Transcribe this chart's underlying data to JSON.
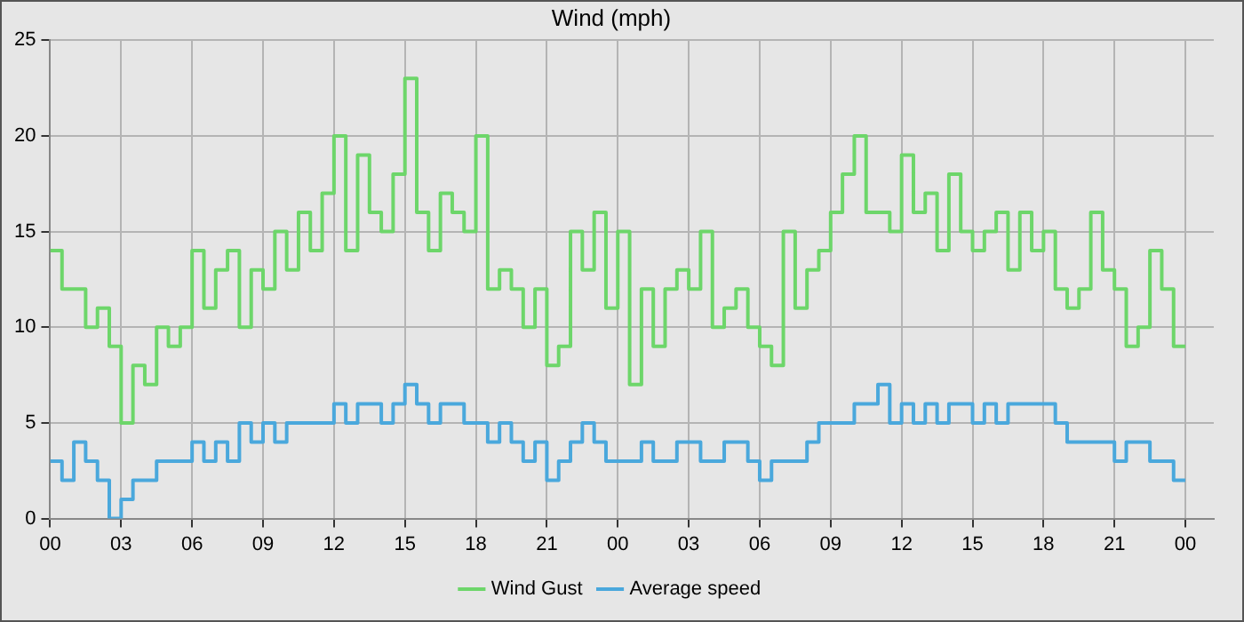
{
  "chart_data": {
    "type": "step",
    "title": "Wind (mph)",
    "x": [
      0,
      0.5,
      1,
      1.5,
      2,
      2.5,
      3,
      3.5,
      4,
      4.5,
      5,
      5.5,
      6,
      6.5,
      7,
      7.5,
      8,
      8.5,
      9,
      9.5,
      10,
      10.5,
      11,
      11.5,
      12,
      12.5,
      13,
      13.5,
      14,
      14.5,
      15,
      15.5,
      16,
      16.5,
      17,
      17.5,
      18,
      18.5,
      19,
      19.5,
      20,
      20.5,
      21,
      21.5,
      22,
      22.5,
      23,
      23.5,
      24,
      24.5,
      25,
      25.5,
      26,
      26.5,
      27,
      27.5,
      28,
      28.5,
      29,
      29.5,
      30,
      30.5,
      31,
      31.5,
      32,
      32.5,
      33,
      33.5,
      34,
      34.5,
      35,
      35.5,
      36,
      36.5,
      37,
      37.5,
      38,
      38.5,
      39,
      39.5,
      40,
      40.5,
      41,
      41.5,
      42,
      42.5,
      43,
      43.5,
      44,
      44.5,
      45,
      45.5,
      46,
      46.5,
      47,
      47.5,
      48
    ],
    "series": [
      {
        "name": "Wind Gust",
        "color": "#6dd66a",
        "values": [
          14,
          12,
          12,
          10,
          11,
          9,
          5,
          8,
          7,
          10,
          9,
          10,
          14,
          11,
          13,
          14,
          10,
          13,
          12,
          15,
          13,
          16,
          14,
          17,
          20,
          14,
          19,
          16,
          15,
          18,
          23,
          16,
          14,
          17,
          16,
          15,
          20,
          12,
          13,
          12,
          10,
          12,
          8,
          9,
          15,
          13,
          16,
          11,
          15,
          7,
          12,
          9,
          12,
          13,
          12,
          15,
          10,
          11,
          12,
          10,
          9,
          8,
          15,
          11,
          13,
          14,
          16,
          18,
          20,
          16,
          16,
          15,
          19,
          16,
          17,
          14,
          18,
          15,
          14,
          15,
          16,
          13,
          16,
          14,
          15,
          12,
          11,
          12,
          16,
          13,
          12,
          9,
          10,
          14,
          12,
          9,
          9
        ]
      },
      {
        "name": "Average speed",
        "color": "#4aa8dc",
        "values": [
          3,
          2,
          4,
          3,
          2,
          0,
          1,
          2,
          2,
          3,
          3,
          3,
          4,
          3,
          4,
          3,
          5,
          4,
          5,
          4,
          5,
          5,
          5,
          5,
          6,
          5,
          6,
          6,
          5,
          6,
          7,
          6,
          5,
          6,
          6,
          5,
          5,
          4,
          5,
          4,
          3,
          4,
          2,
          3,
          4,
          5,
          4,
          3,
          3,
          3,
          4,
          3,
          3,
          4,
          4,
          3,
          3,
          4,
          4,
          3,
          2,
          3,
          3,
          3,
          4,
          5,
          5,
          5,
          6,
          6,
          7,
          5,
          6,
          5,
          6,
          5,
          6,
          6,
          5,
          6,
          5,
          6,
          6,
          6,
          6,
          5,
          4,
          4,
          4,
          4,
          3,
          4,
          4,
          3,
          3,
          2,
          2
        ]
      }
    ],
    "xlim": [
      0,
      49.2
    ],
    "xticks": [
      {
        "value": 0,
        "label": "00"
      },
      {
        "value": 3,
        "label": "03"
      },
      {
        "value": 6,
        "label": "06"
      },
      {
        "value": 9,
        "label": "09"
      },
      {
        "value": 12,
        "label": "12"
      },
      {
        "value": 15,
        "label": "15"
      },
      {
        "value": 18,
        "label": "18"
      },
      {
        "value": 21,
        "label": "21"
      },
      {
        "value": 24,
        "label": "00"
      },
      {
        "value": 27,
        "label": "03"
      },
      {
        "value": 30,
        "label": "06"
      },
      {
        "value": 33,
        "label": "09"
      },
      {
        "value": 36,
        "label": "12"
      },
      {
        "value": 39,
        "label": "15"
      },
      {
        "value": 42,
        "label": "18"
      },
      {
        "value": 45,
        "label": "21"
      },
      {
        "value": 48,
        "label": "00"
      }
    ],
    "ylim": [
      0,
      25
    ],
    "yticks": [
      0,
      5,
      10,
      15,
      20,
      25
    ],
    "grid": true,
    "line_style": "solid",
    "marker": "none",
    "legend": "bottom"
  }
}
